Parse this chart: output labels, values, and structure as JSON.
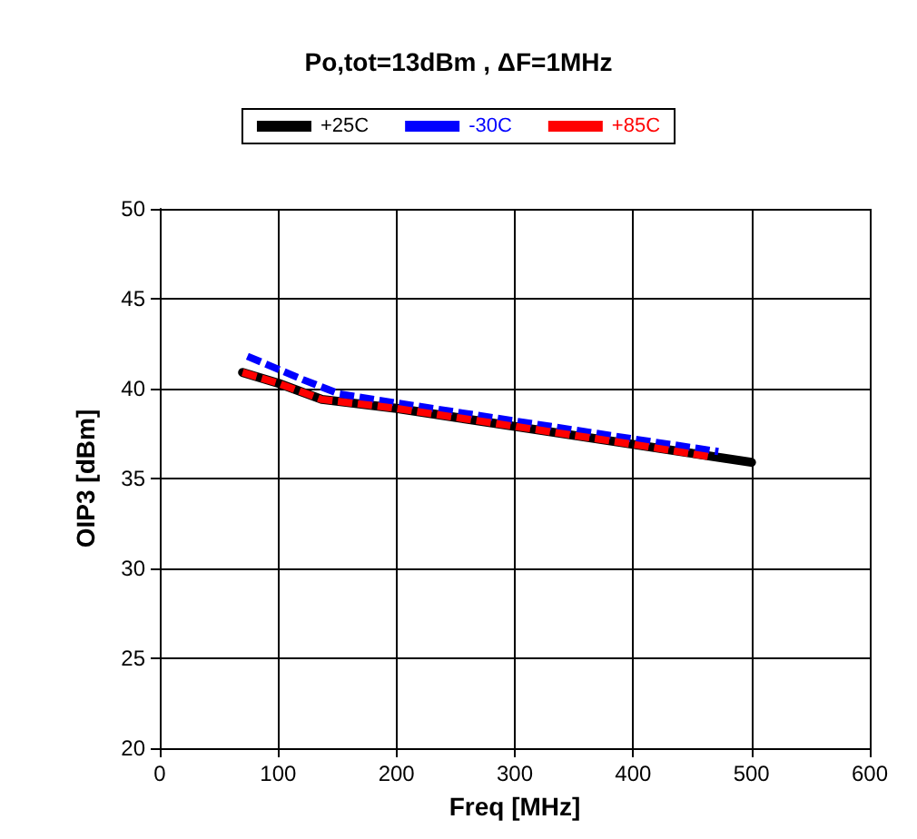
{
  "chart_data": {
    "type": "line",
    "title": "Po,tot=13dBm , ΔF=1MHz",
    "xlabel": "Freq [MHz]",
    "ylabel": "OIP3 [dBm]",
    "xlim": [
      0,
      600
    ],
    "xticks": [
      0,
      100,
      200,
      300,
      400,
      500,
      600
    ],
    "ylim": [
      20,
      50
    ],
    "yticks": [
      20,
      25,
      30,
      35,
      40,
      45,
      50
    ],
    "grid": true,
    "legend": "top",
    "marker": "none",
    "series": [
      {
        "name": "+25C",
        "color": "#000000",
        "line_style": "solid",
        "x": [
          70,
          100,
          137,
          200,
          300,
          400,
          500
        ],
        "values": [
          40.9,
          40.3,
          39.4,
          38.9,
          37.9,
          36.9,
          35.9
        ]
      },
      {
        "name": "-30C",
        "color": "#0000ff",
        "line_style": "dashed",
        "x": [
          74,
          121,
          152,
          200,
          300,
          400,
          472
        ],
        "values": [
          41.8,
          40.5,
          39.7,
          39.2,
          38.2,
          37.2,
          36.5
        ]
      },
      {
        "name": "+85C",
        "color": "#ff0000",
        "line_style": "dashed",
        "x": [
          70,
          100,
          137,
          200,
          300,
          400,
          466
        ],
        "values": [
          40.9,
          40.3,
          39.4,
          38.9,
          37.9,
          36.9,
          36.2
        ]
      }
    ]
  }
}
